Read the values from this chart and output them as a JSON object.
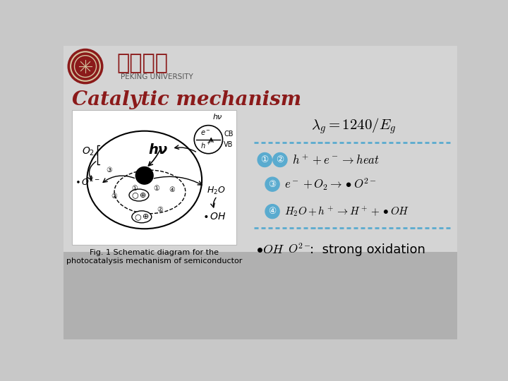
{
  "bg_color": "#c8c8c8",
  "bg_top": "#d2d2d2",
  "bg_bottom": "#aaaaaa",
  "title": "Catalytic mechanism",
  "title_color": "#8B1A1A",
  "title_fontsize": 20,
  "blue_color": "#5aabcf",
  "dark_red": "#8B1A1A",
  "eq1_text": "$\\lambda_g = 1240/ E_g$",
  "eq2_text": "$h^+ + e^- \\rightarrow heat$",
  "eq3_text": "$e^- + O_2 \\rightarrow \\bullet O^{2-}$",
  "eq4_text": "$H_2O + h^+ \\rightarrow H^+ + \\bullet OH$",
  "bottom_text1": "$\\bullet OH$",
  "bottom_text2": "$O^{2-}$",
  "bottom_text3": ":  strong oxidation",
  "fig_caption1": "Fig. 1 Schematic diagram for the",
  "fig_caption2": "photocatalysis mechanism of semiconductor",
  "dashed_color": "#5aabcf",
  "circle_fill": "#5aabcf"
}
